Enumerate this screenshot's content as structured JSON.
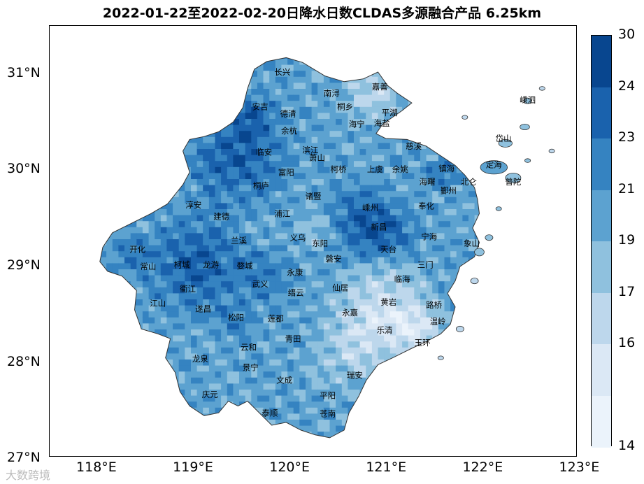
{
  "title": "2022-01-22至2022-02-20日降水日数CLDAS多源融合产品 6.25km",
  "axes": {
    "x_ticks": [
      "118°E",
      "119°E",
      "120°E",
      "121°E",
      "122°E",
      "123°E"
    ],
    "y_ticks": [
      "31°N",
      "30°N",
      "29°N",
      "28°N",
      "27°N"
    ]
  },
  "colorbar": {
    "labels": [
      "30",
      "24",
      "23",
      "21",
      "19",
      "17",
      "16",
      "14"
    ],
    "colors": [
      "#08468f",
      "#1a62ad",
      "#3583c1",
      "#5ca2d0",
      "#8fc1de",
      "#bdd7ec",
      "#dbe8f5",
      "#ebf3fb"
    ]
  },
  "cities": [
    {
      "name": "长兴",
      "lon": 119.91,
      "lat": 30.99
    },
    {
      "name": "嘉善",
      "lon": 120.92,
      "lat": 30.84
    },
    {
      "name": "南浔",
      "lon": 120.42,
      "lat": 30.77
    },
    {
      "name": "安吉",
      "lon": 119.68,
      "lat": 30.63
    },
    {
      "name": "桐乡",
      "lon": 120.56,
      "lat": 30.63
    },
    {
      "name": "德清",
      "lon": 119.97,
      "lat": 30.56
    },
    {
      "name": "平湖",
      "lon": 121.02,
      "lat": 30.57
    },
    {
      "name": "嵊泗",
      "lon": 122.45,
      "lat": 30.7
    },
    {
      "name": "海宁",
      "lon": 120.68,
      "lat": 30.45
    },
    {
      "name": "海盐",
      "lon": 120.94,
      "lat": 30.46
    },
    {
      "name": "余杭",
      "lon": 119.98,
      "lat": 30.38
    },
    {
      "name": "岱山",
      "lon": 122.2,
      "lat": 30.3
    },
    {
      "name": "慈溪",
      "lon": 121.27,
      "lat": 30.22
    },
    {
      "name": "临安",
      "lon": 119.72,
      "lat": 30.16
    },
    {
      "name": "滨江",
      "lon": 120.2,
      "lat": 30.18
    },
    {
      "name": "萧山",
      "lon": 120.27,
      "lat": 30.1
    },
    {
      "name": "定海",
      "lon": 122.1,
      "lat": 30.03
    },
    {
      "name": "镇海",
      "lon": 121.61,
      "lat": 29.99
    },
    {
      "name": "柯桥",
      "lon": 120.49,
      "lat": 29.98
    },
    {
      "name": "上虞",
      "lon": 120.87,
      "lat": 29.98
    },
    {
      "name": "余姚",
      "lon": 121.13,
      "lat": 29.98
    },
    {
      "name": "富阳",
      "lon": 119.95,
      "lat": 29.95
    },
    {
      "name": "北仑",
      "lon": 121.84,
      "lat": 29.85
    },
    {
      "name": "普陀",
      "lon": 122.3,
      "lat": 29.85
    },
    {
      "name": "海曙",
      "lon": 121.41,
      "lat": 29.85
    },
    {
      "name": "桐庐",
      "lon": 119.69,
      "lat": 29.81
    },
    {
      "name": "鄞州",
      "lon": 121.63,
      "lat": 29.76
    },
    {
      "name": "诸暨",
      "lon": 120.23,
      "lat": 29.7
    },
    {
      "name": "淳安",
      "lon": 118.99,
      "lat": 29.61
    },
    {
      "name": "奉化",
      "lon": 121.4,
      "lat": 29.6
    },
    {
      "name": "嵊州",
      "lon": 120.82,
      "lat": 29.58
    },
    {
      "name": "浦江",
      "lon": 119.91,
      "lat": 29.52
    },
    {
      "name": "建德",
      "lon": 119.28,
      "lat": 29.49
    },
    {
      "name": "新昌",
      "lon": 120.91,
      "lat": 29.38
    },
    {
      "name": "宁海",
      "lon": 121.43,
      "lat": 29.28
    },
    {
      "name": "义乌",
      "lon": 120.07,
      "lat": 29.27
    },
    {
      "name": "兰溪",
      "lon": 119.46,
      "lat": 29.24
    },
    {
      "name": "东阳",
      "lon": 120.3,
      "lat": 29.21
    },
    {
      "name": "象山",
      "lon": 121.87,
      "lat": 29.21
    },
    {
      "name": "开化",
      "lon": 118.41,
      "lat": 29.15
    },
    {
      "name": "天台",
      "lon": 121.01,
      "lat": 29.15
    },
    {
      "name": "磐安",
      "lon": 120.44,
      "lat": 29.05
    },
    {
      "name": "三门",
      "lon": 121.39,
      "lat": 28.99
    },
    {
      "name": "常山",
      "lon": 118.52,
      "lat": 28.97
    },
    {
      "name": "柯城",
      "lon": 118.87,
      "lat": 28.99
    },
    {
      "name": "龙游",
      "lon": 119.17,
      "lat": 28.99
    },
    {
      "name": "婺城",
      "lon": 119.52,
      "lat": 28.98
    },
    {
      "name": "永康",
      "lon": 120.04,
      "lat": 28.91
    },
    {
      "name": "临海",
      "lon": 121.15,
      "lat": 28.84
    },
    {
      "name": "武义",
      "lon": 119.68,
      "lat": 28.79
    },
    {
      "name": "衢江",
      "lon": 118.93,
      "lat": 28.74
    },
    {
      "name": "缙云",
      "lon": 120.05,
      "lat": 28.7
    },
    {
      "name": "仙居",
      "lon": 120.51,
      "lat": 28.75
    },
    {
      "name": "江山",
      "lon": 118.62,
      "lat": 28.59
    },
    {
      "name": "黄岩",
      "lon": 121.01,
      "lat": 28.6
    },
    {
      "name": "路桥",
      "lon": 121.48,
      "lat": 28.57
    },
    {
      "name": "遂昌",
      "lon": 119.09,
      "lat": 28.53
    },
    {
      "name": "松阳",
      "lon": 119.43,
      "lat": 28.44
    },
    {
      "name": "莲都",
      "lon": 119.84,
      "lat": 28.43
    },
    {
      "name": "永嘉",
      "lon": 120.61,
      "lat": 28.49
    },
    {
      "name": "温岭",
      "lon": 121.52,
      "lat": 28.4
    },
    {
      "name": "乐清",
      "lon": 120.97,
      "lat": 28.31
    },
    {
      "name": "青田",
      "lon": 120.02,
      "lat": 28.22
    },
    {
      "name": "玉环",
      "lon": 121.36,
      "lat": 28.18
    },
    {
      "name": "云和",
      "lon": 119.56,
      "lat": 28.13
    },
    {
      "name": "龙泉",
      "lon": 119.06,
      "lat": 28.01
    },
    {
      "name": "景宁",
      "lon": 119.58,
      "lat": 27.92
    },
    {
      "name": "瑞安",
      "lon": 120.66,
      "lat": 27.84
    },
    {
      "name": "文成",
      "lon": 119.93,
      "lat": 27.79
    },
    {
      "name": "庆元",
      "lon": 119.16,
      "lat": 27.64
    },
    {
      "name": "平阳",
      "lon": 120.38,
      "lat": 27.63
    },
    {
      "name": "泰顺",
      "lon": 119.78,
      "lat": 27.45
    },
    {
      "name": "苍南",
      "lon": 120.38,
      "lat": 27.44
    }
  ],
  "watermark": "大数跨境"
}
